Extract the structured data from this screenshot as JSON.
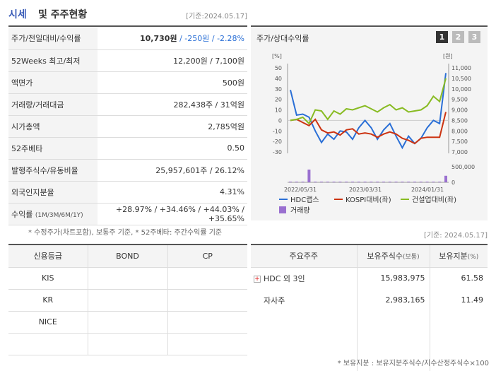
{
  "header": {
    "title_a": "시세",
    "title_b": "및 주주현황",
    "date": "[기준:2024.05.17]"
  },
  "quote_rows": [
    {
      "label": "주가/전일대비/수익률",
      "price": "10,730원",
      "change": " / -250원",
      "rate": " / -2.28%"
    },
    {
      "label": "52Weeks 최고/최저",
      "value": "12,200원 / 7,100원"
    },
    {
      "label": "액면가",
      "value": "500원"
    },
    {
      "label": "거래량/거래대금",
      "value": "282,438주 / 31억원"
    },
    {
      "label": "시가총액",
      "value": "2,785억원"
    },
    {
      "label": "52주베타",
      "value": "0.50"
    },
    {
      "label": "발행주식수/유동비율",
      "value": "25,957,601주 / 26.12%"
    },
    {
      "label": "외국인지분율",
      "value": "4.31%"
    },
    {
      "label": "수익률",
      "label_sub": "(1M/3M/6M/1Y)",
      "value": "+28.97% / +34.46% / +44.03% / +35.65%"
    }
  ],
  "note1": "* 수정주가(차트포함), 보통주 기준, * 52주베타: 주간수익률 기준",
  "chart": {
    "title": "주가/상대수익률",
    "pages": [
      "1",
      "2",
      "3"
    ],
    "left_unit": "[%]",
    "right_unit": "[원]",
    "legend": {
      "hdc": "HDC랩스",
      "kospi": "KOSPI대비(좌)",
      "const": "건설업대비(좌)",
      "volume": "거래량"
    },
    "colors": {
      "hdc": "#2a6fd6",
      "kospi": "#cc3311",
      "const": "#88bb22",
      "volume": "#9a70d0"
    }
  },
  "chart_data": {
    "type": "line",
    "x_ticks": [
      "2022/05/31",
      "2023/03/31",
      "2024/01/31"
    ],
    "y_left_ticks": [
      "50",
      "40",
      "30",
      "20",
      "10",
      "0",
      "-10",
      "-20",
      "-30"
    ],
    "y_right_ticks": [
      "11,000",
      "10,500",
      "10,000",
      "9,500",
      "9,000",
      "8,500",
      "8,000",
      "7,500",
      "7,000"
    ],
    "volume_ticks": [
      "500,000",
      "0"
    ],
    "ylim_left": [
      -30,
      50
    ],
    "ylim_right": [
      7000,
      11000
    ],
    "series": [
      {
        "name": "HDC랩스",
        "axis": "left",
        "values": [
          29,
          5,
          6,
          3,
          -10,
          -21,
          -13,
          -18,
          -10,
          -11,
          -18,
          -7,
          0,
          -7,
          -18,
          -9,
          -3,
          -15,
          -26,
          -15,
          -22,
          -17,
          -7,
          0,
          -3,
          45
        ]
      },
      {
        "name": "KOSPI대비(좌)",
        "axis": "left",
        "values": [
          0,
          1,
          -2,
          -5,
          1,
          -9,
          -12,
          -11,
          -14,
          -9,
          -8,
          -13,
          -12,
          -13,
          -16,
          -13,
          -11,
          -13,
          -17,
          -19,
          -22,
          -17,
          -16,
          -16,
          -16,
          8
        ]
      },
      {
        "name": "건설업대비(좌)",
        "axis": "left",
        "values": [
          0,
          1,
          3,
          -3,
          10,
          9,
          1,
          9,
          6,
          11,
          10,
          12,
          14,
          11,
          8,
          12,
          15,
          10,
          12,
          8,
          9,
          10,
          14,
          23,
          18,
          40
        ]
      },
      {
        "name": "거래량",
        "axis": "volume",
        "values": [
          12000,
          8000,
          9000,
          410000,
          15000,
          6000,
          5000,
          7000,
          6000,
          9000,
          8000,
          7000,
          6000,
          8000,
          9000,
          7000,
          6000,
          8000,
          10000,
          7000,
          6000,
          9000,
          8000,
          9000,
          12000,
          210000
        ]
      }
    ]
  },
  "date2": "[기준: 2024.05.17]",
  "grade": {
    "headers": [
      "신용등급",
      "BOND",
      "CP"
    ],
    "rows": [
      [
        "KIS",
        "",
        ""
      ],
      [
        "KR",
        "",
        ""
      ],
      [
        "NICE",
        "",
        ""
      ],
      [
        "",
        "",
        ""
      ]
    ]
  },
  "holders": {
    "h1": "주요주주",
    "h2": "보유주식수",
    "h2s": "(보통)",
    "h3": "보유지분",
    "h3s": "(%)",
    "rows": [
      {
        "name": "HDC 외 3인",
        "shares": "15,983,975",
        "pct": "61.58"
      },
      {
        "name": "자사주",
        "shares": "2,983,165",
        "pct": "11.49"
      }
    ]
  },
  "note2": "* 보유지분 : 보유지분주식수/지수산정주식수×100"
}
